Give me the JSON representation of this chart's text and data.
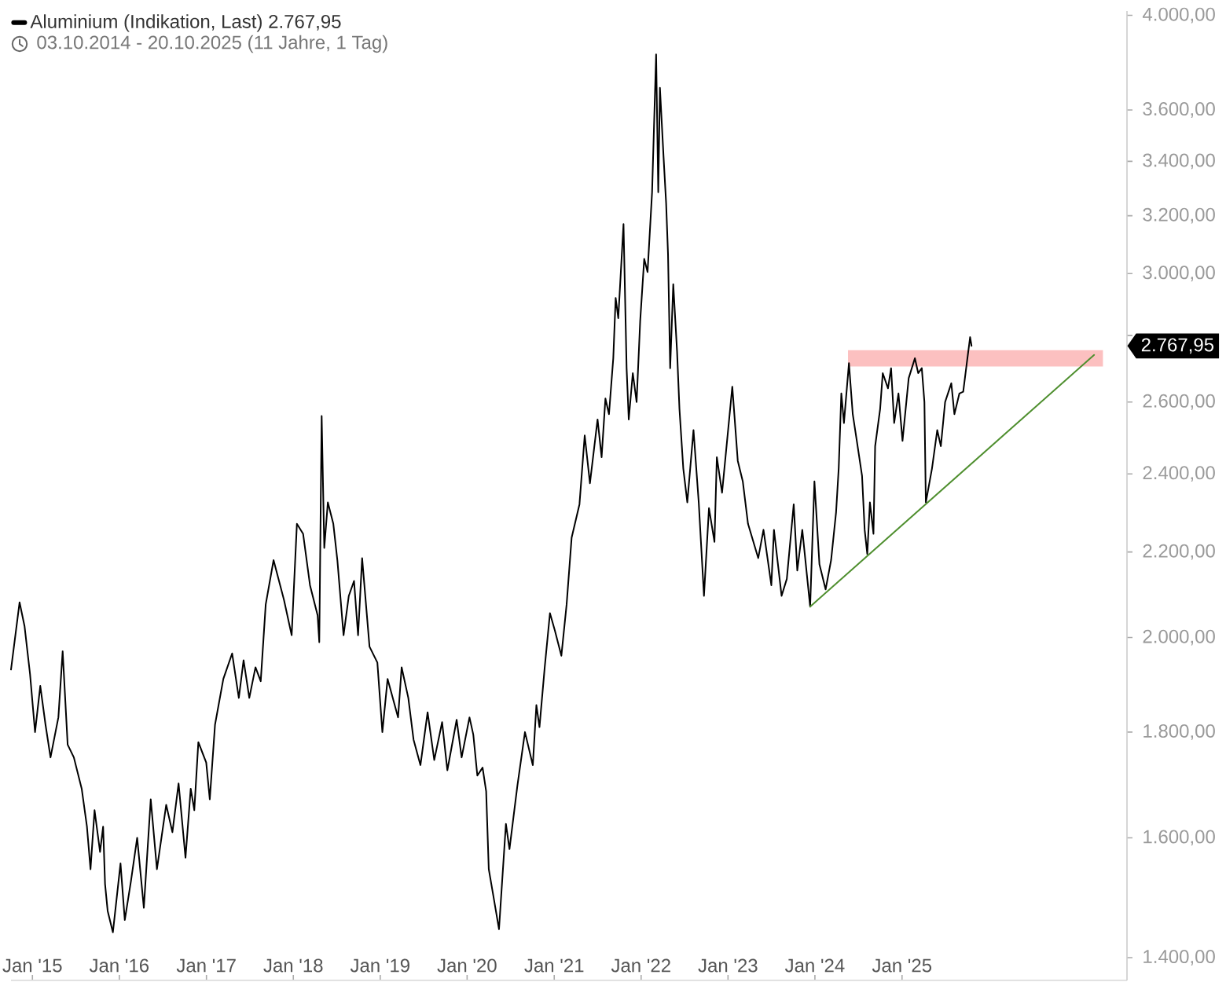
{
  "chart_data": {
    "type": "line",
    "subtitle": "03.10.2014 - 20.10.2025 (11 Jahre, 1 Tag)",
    "annotations": [
      "2.767,95"
    ],
    "xlim": [
      "2014-10-03",
      "2027-08-04"
    ],
    "xticks": [
      {
        "value": "2015-01-01",
        "label": "Jan '15"
      },
      {
        "value": "2016-01-01",
        "label": "Jan '16"
      },
      {
        "value": "2017-01-01",
        "label": "Jan '17"
      },
      {
        "value": "2018-01-01",
        "label": "Jan '18"
      },
      {
        "value": "2019-01-01",
        "label": "Jan '19"
      },
      {
        "value": "2020-01-01",
        "label": "Jan '20"
      },
      {
        "value": "2021-01-01",
        "label": "Jan '21"
      },
      {
        "value": "2022-01-01",
        "label": "Jan '22"
      },
      {
        "value": "2023-01-01",
        "label": "Jan '23"
      },
      {
        "value": "2024-01-01",
        "label": "Jan '24"
      },
      {
        "value": "2025-01-01",
        "label": "Jan '25"
      }
    ],
    "ylim": [
      1365,
      4020
    ],
    "yticks": [
      {
        "value": 1400,
        "label": "1.400,00"
      },
      {
        "value": 1600,
        "label": "1.600,00"
      },
      {
        "value": 1800,
        "label": "1.800,00"
      },
      {
        "value": 2000,
        "label": "2.000,00"
      },
      {
        "value": 2200,
        "label": "2.200,00"
      },
      {
        "value": 2400,
        "label": "2.400,00"
      },
      {
        "value": 2600,
        "label": "2.600,00"
      },
      {
        "value": 2800,
        "label": null
      },
      {
        "value": 3000,
        "label": "3.000,00"
      },
      {
        "value": 3200,
        "label": "3.200,00"
      },
      {
        "value": 3400,
        "label": "3.400,00"
      },
      {
        "value": 3600,
        "label": "3.600,00"
      },
      {
        "value": 4000,
        "label": "4.000,00"
      }
    ],
    "log": "y",
    "legend": "top left",
    "series": [
      {
        "type": "area",
        "x": [
          "2024-05-19",
          "2027-04-25"
        ],
        "values": [
          null,
          null
        ],
        "lower": [
          2705,
          2705
        ],
        "upper": [
          2755,
          2755
        ],
        "color": "#fcc0c0"
      },
      {
        "name": "Aluminium (Indikation, Last) 2.767,95",
        "color": "#000000",
        "x": [
          "2014-10-03",
          "2014-11-08",
          "2014-11-29",
          "2014-12-22",
          "2015-01-12",
          "2015-02-03",
          "2015-02-25",
          "2015-03-18",
          "2015-04-20",
          "2015-05-08",
          "2015-05-29",
          "2015-06-24",
          "2015-07-27",
          "2015-08-18",
          "2015-09-02",
          "2015-09-19",
          "2015-10-12",
          "2015-10-25",
          "2015-11-02",
          "2015-11-13",
          "2015-12-05",
          "2016-01-06",
          "2016-01-24",
          "2016-02-19",
          "2016-03-16",
          "2016-04-13",
          "2016-05-12",
          "2016-06-07",
          "2016-07-16",
          "2016-08-11",
          "2016-09-06",
          "2016-10-05",
          "2016-10-27",
          "2016-11-11",
          "2016-11-28",
          "2016-12-31",
          "2017-01-15",
          "2017-02-06",
          "2017-03-13",
          "2017-04-19",
          "2017-05-17",
          "2017-06-06",
          "2017-06-30",
          "2017-07-26",
          "2017-08-17",
          "2017-09-07",
          "2017-10-10",
          "2017-11-23",
          "2017-12-25",
          "2018-01-16",
          "2018-02-11",
          "2018-03-12",
          "2018-04-13",
          "2018-04-20",
          "2018-04-30",
          "2018-05-11",
          "2018-05-26",
          "2018-06-18",
          "2018-07-05",
          "2018-07-31",
          "2018-08-22",
          "2018-09-13",
          "2018-09-30",
          "2018-10-17",
          "2018-11-17",
          "2018-12-20",
          "2019-01-10",
          "2019-02-01",
          "2019-03-17",
          "2019-04-01",
          "2019-04-29",
          "2019-05-21",
          "2019-06-19",
          "2019-07-19",
          "2019-08-16",
          "2019-09-18",
          "2019-10-10",
          "2019-11-18",
          "2019-12-09",
          "2020-01-11",
          "2020-01-27",
          "2020-02-13",
          "2020-03-06",
          "2020-03-21",
          "2020-04-01",
          "2020-04-18",
          "2020-05-14",
          "2020-06-12",
          "2020-06-27",
          "2020-07-30",
          "2020-08-31",
          "2020-10-03",
          "2020-10-18",
          "2020-10-31",
          "2020-11-22",
          "2020-12-14",
          "2021-01-04",
          "2021-01-31",
          "2021-02-22",
          "2021-03-15",
          "2021-04-17",
          "2021-05-09",
          "2021-05-31",
          "2021-07-02",
          "2021-07-19",
          "2021-08-04",
          "2021-08-19",
          "2021-09-06",
          "2021-09-16",
          "2021-09-27",
          "2021-10-19",
          "2021-11-01",
          "2021-11-10",
          "2021-11-27",
          "2021-12-13",
          "2021-12-28",
          "2022-01-14",
          "2022-01-28",
          "2022-02-16",
          "2022-03-05",
          "2022-03-14",
          "2022-03-21",
          "2022-04-05",
          "2022-04-16",
          "2022-04-24",
          "2022-05-03",
          "2022-05-16",
          "2022-06-01",
          "2022-06-11",
          "2022-06-27",
          "2022-07-14",
          "2022-08-09",
          "2022-08-31",
          "2022-09-22",
          "2022-10-13",
          "2022-11-05",
          "2022-11-15",
          "2022-12-07",
          "2023-01-19",
          "2023-02-11",
          "2023-03-04",
          "2023-03-26",
          "2023-05-08",
          "2023-05-30",
          "2023-07-02",
          "2023-07-13",
          "2023-08-14",
          "2023-09-05",
          "2023-10-04",
          "2023-10-19",
          "2023-11-09",
          "2023-12-12",
          "2023-12-30",
          "2024-01-20",
          "2024-02-15",
          "2024-03-09",
          "2024-03-30",
          "2024-04-10",
          "2024-04-21",
          "2024-05-02",
          "2024-05-23",
          "2024-06-08",
          "2024-06-25",
          "2024-07-17",
          "2024-07-28",
          "2024-08-08",
          "2024-08-19",
          "2024-09-03",
          "2024-09-10",
          "2024-10-01",
          "2024-10-12",
          "2024-11-03",
          "2024-11-16",
          "2024-11-29",
          "2024-12-17",
          "2025-01-03",
          "2025-01-29",
          "2025-02-24",
          "2025-03-10",
          "2025-03-25",
          "2025-04-05",
          "2025-04-11",
          "2025-05-07",
          "2025-05-29",
          "2025-06-13",
          "2025-07-01",
          "2025-07-27",
          "2025-08-09",
          "2025-08-30",
          "2025-09-15",
          "2025-09-30",
          "2025-10-14",
          "2025-10-20"
        ],
        "values": [
          1930,
          2080,
          2025,
          1920,
          1800,
          1895,
          1815,
          1750,
          1830,
          1970,
          1775,
          1750,
          1690,
          1620,
          1545,
          1650,
          1575,
          1620,
          1520,
          1475,
          1440,
          1555,
          1460,
          1525,
          1600,
          1480,
          1670,
          1545,
          1660,
          1610,
          1700,
          1565,
          1690,
          1650,
          1780,
          1740,
          1670,
          1815,
          1910,
          1965,
          1870,
          1950,
          1870,
          1935,
          1905,
          2075,
          2180,
          2085,
          2005,
          2270,
          2245,
          2120,
          2050,
          1990,
          2560,
          2210,
          2325,
          2270,
          2180,
          2005,
          2095,
          2130,
          2005,
          2185,
          1980,
          1945,
          1800,
          1910,
          1830,
          1935,
          1870,
          1785,
          1735,
          1840,
          1745,
          1820,
          1725,
          1825,
          1750,
          1830,
          1795,
          1715,
          1730,
          1685,
          1545,
          1505,
          1445,
          1625,
          1580,
          1695,
          1800,
          1735,
          1855,
          1810,
          1935,
          2055,
          2015,
          1960,
          2075,
          2235,
          2320,
          2505,
          2375,
          2550,
          2445,
          2610,
          2565,
          2730,
          2920,
          2855,
          3170,
          2700,
          2550,
          2685,
          2600,
          2845,
          3050,
          3005,
          3285,
          3830,
          3285,
          3690,
          3420,
          3245,
          3065,
          2700,
          2965,
          2750,
          2580,
          2415,
          2325,
          2520,
          2325,
          2095,
          2310,
          2225,
          2445,
          2350,
          2645,
          2435,
          2380,
          2270,
          2185,
          2255,
          2120,
          2255,
          2095,
          2135,
          2320,
          2155,
          2255,
          2070,
          2380,
          2170,
          2110,
          2180,
          2300,
          2415,
          2625,
          2540,
          2715,
          2565,
          2490,
          2395,
          2255,
          2195,
          2325,
          2245,
          2475,
          2580,
          2685,
          2640,
          2700,
          2540,
          2625,
          2490,
          2670,
          2730,
          2685,
          2700,
          2600,
          2325,
          2415,
          2520,
          2475,
          2600,
          2655,
          2565,
          2625,
          2630,
          2715,
          2795,
          2767.95
        ]
      },
      {
        "type": "line",
        "x": [
          "2023-12-12",
          "2027-03-19"
        ],
        "values": [
          2070,
          2740
        ],
        "color": "#4f8f2f"
      }
    ]
  }
}
